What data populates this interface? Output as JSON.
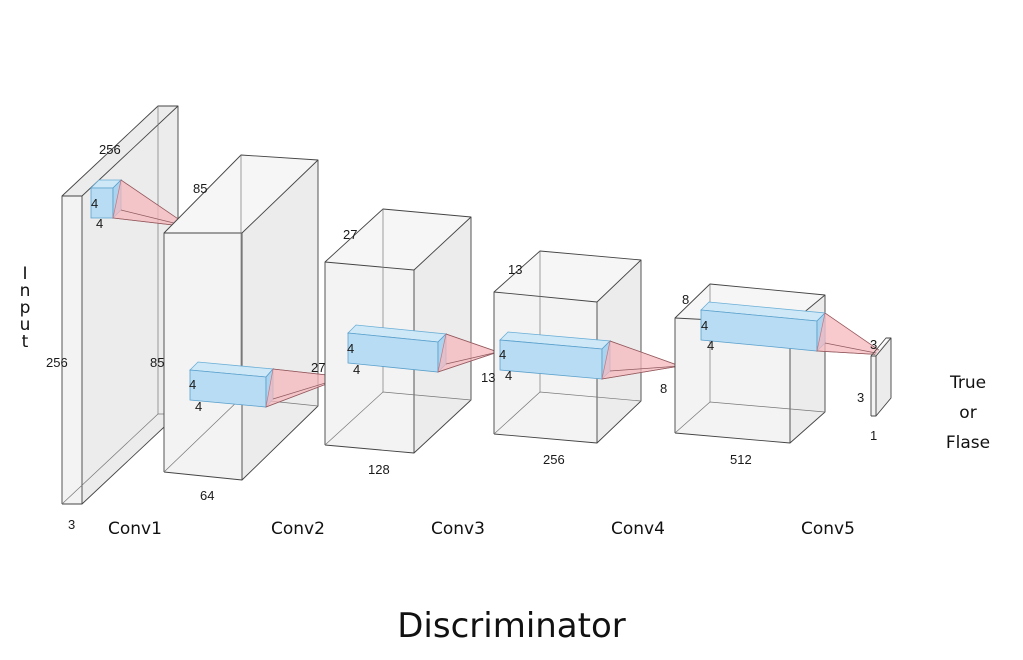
{
  "diagram": {
    "title": "Discriminator",
    "input_label": "Input",
    "output_label": "True\nor\nFlase",
    "layers": [
      {
        "name": "Input",
        "dims": {
          "width": "256",
          "height": "256",
          "depth": "3"
        },
        "kernel": {
          "h": "4",
          "w": "4"
        }
      },
      {
        "name": "Conv1",
        "dims": {
          "width": "85",
          "height": "85",
          "depth": "64"
        },
        "kernel": {
          "h": "4",
          "w": "4"
        }
      },
      {
        "name": "Conv2",
        "dims": {
          "width": "27",
          "height": "27",
          "depth": "128"
        },
        "kernel": {
          "h": "4",
          "w": "4"
        }
      },
      {
        "name": "Conv3",
        "dims": {
          "width": "13",
          "height": "13",
          "depth": "256"
        },
        "kernel": {
          "h": "4",
          "w": "4"
        }
      },
      {
        "name": "Conv4",
        "dims": {
          "width": "8",
          "height": "8",
          "depth": "512"
        },
        "kernel": {
          "h": "4",
          "w": "4"
        }
      },
      {
        "name": "Conv5",
        "dims": {
          "width": "3",
          "height": "3",
          "depth": "1"
        }
      }
    ],
    "colors": {
      "kernel": "#b8dcf3",
      "cone": "#f6b8bd",
      "volume": "#f3f3f3",
      "edge": "#444444"
    }
  }
}
